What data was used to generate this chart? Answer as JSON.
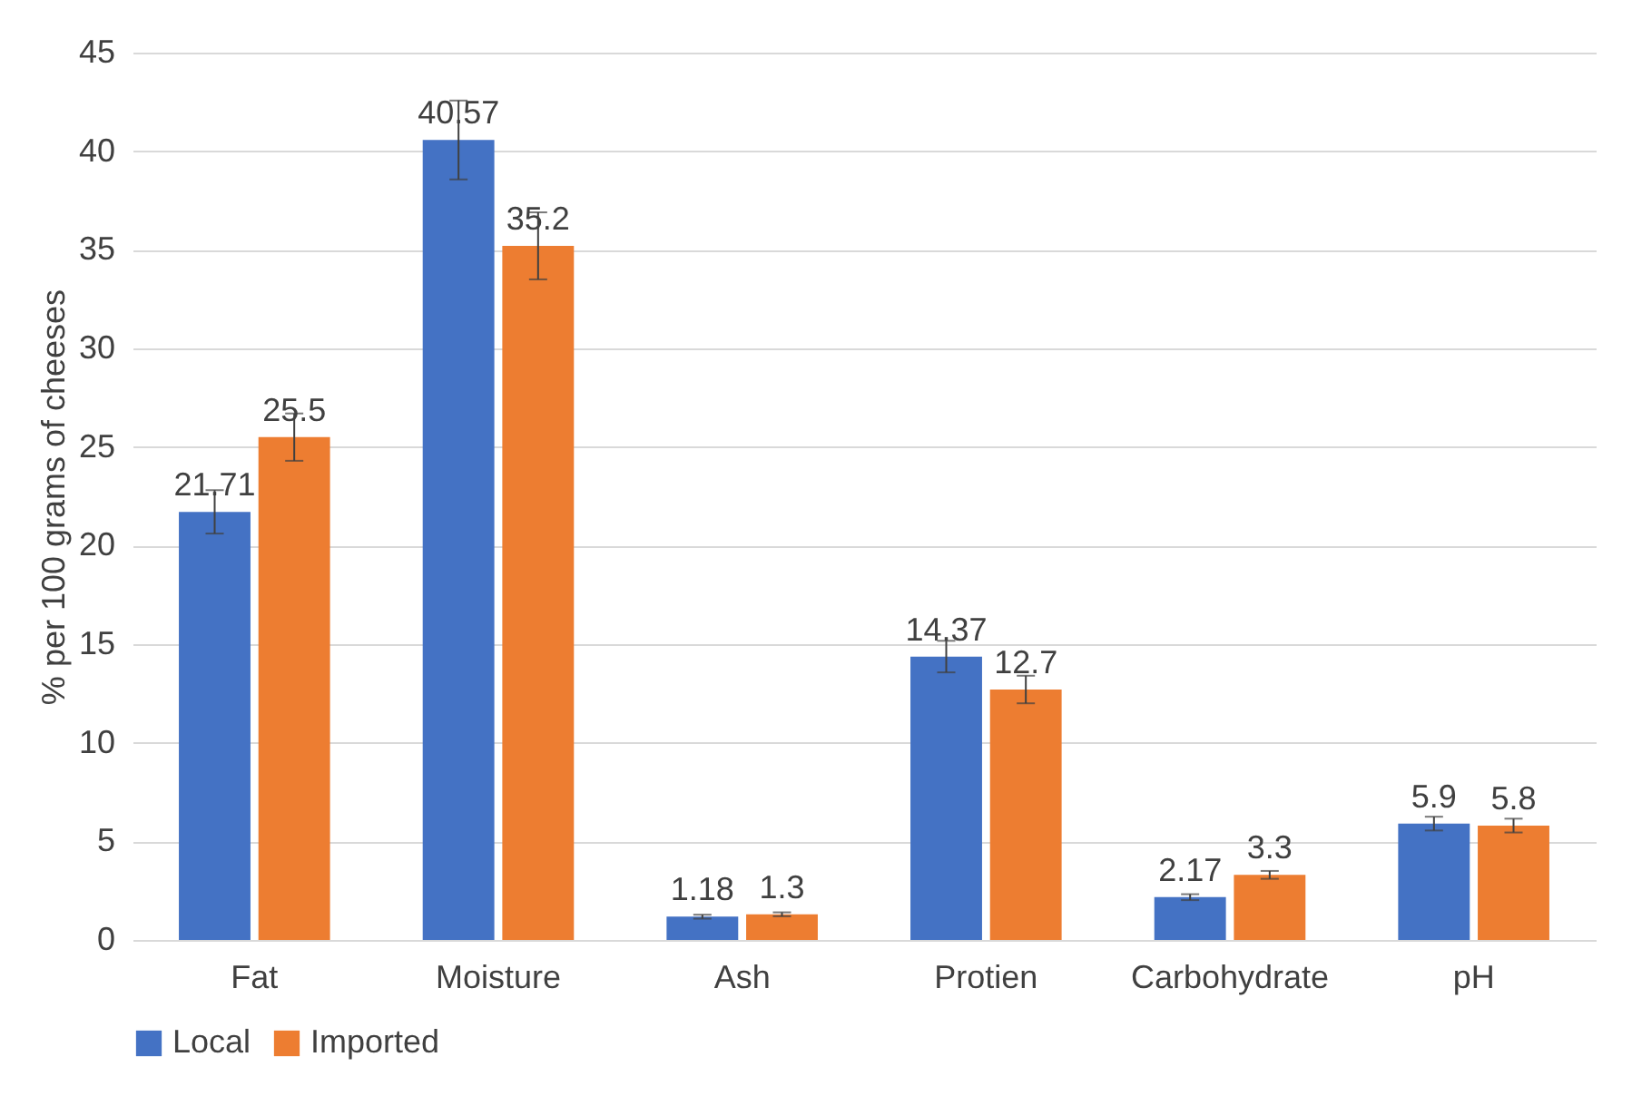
{
  "chart_data": {
    "type": "bar",
    "ylabel": "% per 100 grams of cheeses",
    "categories": [
      "Fat",
      "Moisture",
      "Ash",
      "Protien",
      "Carbohydrate",
      "pH"
    ],
    "series": [
      {
        "name": "Local",
        "color": "#4472c4",
        "values": [
          21.71,
          40.57,
          1.18,
          14.37,
          2.17,
          5.9
        ],
        "errors": [
          1.1,
          2.0,
          0.1,
          0.8,
          0.15,
          0.35
        ]
      },
      {
        "name": "Imported",
        "color": "#ed7d31",
        "values": [
          25.5,
          35.2,
          1.3,
          12.7,
          3.3,
          5.8
        ],
        "errors": [
          1.2,
          1.7,
          0.1,
          0.7,
          0.2,
          0.35
        ]
      }
    ],
    "ylim": [
      0,
      45
    ],
    "yticks": [
      0,
      5,
      10,
      15,
      20,
      25,
      30,
      35,
      40,
      45
    ],
    "grid": "y",
    "legend": "bottom",
    "data_labels": true
  }
}
